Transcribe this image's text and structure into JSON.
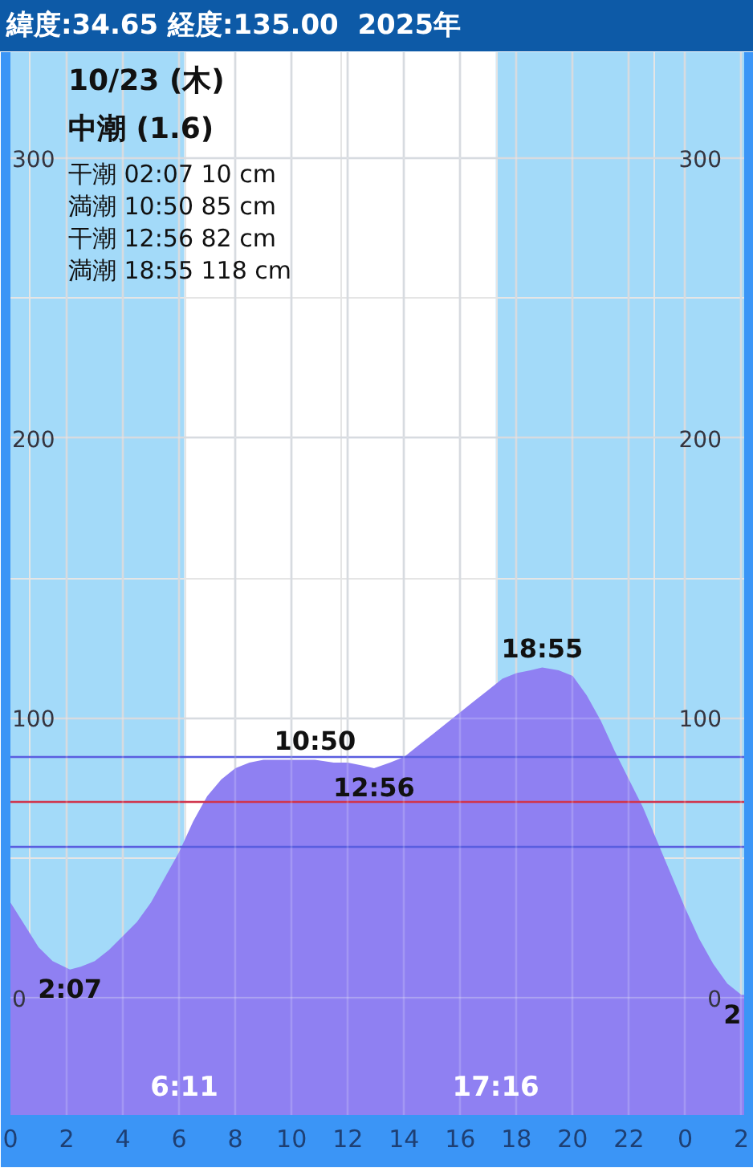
{
  "chart_data": {
    "type": "area",
    "title": "緯度:34.65 経度:135.00  2025年",
    "subtitle": "10/23 (木)",
    "x": [
      "2025-10-23T00:00",
      "2025-10-23T00:30",
      "2025-10-23T01:00",
      "2025-10-23T01:30",
      "2025-10-23T02:07",
      "2025-10-23T02:30",
      "2025-10-23T03:00",
      "2025-10-23T03:30",
      "2025-10-23T04:00",
      "2025-10-23T04:30",
      "2025-10-23T05:00",
      "2025-10-23T05:30",
      "2025-10-23T06:00",
      "2025-10-23T06:30",
      "2025-10-23T07:00",
      "2025-10-23T07:30",
      "2025-10-23T08:00",
      "2025-10-23T08:30",
      "2025-10-23T09:00",
      "2025-10-23T09:30",
      "2025-10-23T10:00",
      "2025-10-23T10:50",
      "2025-10-23T11:30",
      "2025-10-23T12:00",
      "2025-10-23T12:30",
      "2025-10-23T12:56",
      "2025-10-23T13:30",
      "2025-10-23T14:00",
      "2025-10-23T14:30",
      "2025-10-23T15:00",
      "2025-10-23T15:30",
      "2025-10-23T16:00",
      "2025-10-23T16:30",
      "2025-10-23T17:00",
      "2025-10-23T17:30",
      "2025-10-23T18:00",
      "2025-10-23T18:30",
      "2025-10-23T18:55",
      "2025-10-23T19:30",
      "2025-10-23T20:00",
      "2025-10-23T20:30",
      "2025-10-23T21:00",
      "2025-10-23T21:30",
      "2025-10-23T22:00",
      "2025-10-23T22:30",
      "2025-10-23T23:00",
      "2025-10-23T23:30",
      "2025-10-24T00:00",
      "2025-10-24T00:30",
      "2025-10-24T01:00",
      "2025-10-24T01:30",
      "2025-10-24T02:00",
      "2025-10-24T02:06"
    ],
    "series": [
      {
        "color": "#8f80f2",
        "values": [
          34,
          26,
          18,
          13,
          10,
          11,
          13,
          17,
          22,
          27,
          34,
          43,
          52,
          63,
          72,
          78,
          82,
          84,
          85,
          85,
          85,
          85,
          84,
          84,
          83,
          82,
          84,
          86,
          90,
          94,
          98,
          102,
          106,
          110,
          114,
          116,
          117,
          118,
          117,
          115,
          108,
          99,
          88,
          78,
          68,
          56,
          44,
          32,
          21,
          12,
          5,
          1,
          1
        ]
      }
    ],
    "xlim": [
      "2025-10-23T00:00",
      "2025-10-24T02:06"
    ],
    "xticks": [
      {
        "value": "2025-10-23T00:00",
        "label": "0"
      },
      {
        "value": "2025-10-23T02:00",
        "label": "2"
      },
      {
        "value": "2025-10-23T04:00",
        "label": "4"
      },
      {
        "value": "2025-10-23T06:00",
        "label": "6"
      },
      {
        "value": "2025-10-23T08:00",
        "label": "8"
      },
      {
        "value": "2025-10-23T10:00",
        "label": "10"
      },
      {
        "value": "2025-10-23T12:00",
        "label": "12"
      },
      {
        "value": "2025-10-23T14:00",
        "label": "14"
      },
      {
        "value": "2025-10-23T16:00",
        "label": "16"
      },
      {
        "value": "2025-10-23T18:00",
        "label": "18"
      },
      {
        "value": "2025-10-23T20:00",
        "label": "20"
      },
      {
        "value": "2025-10-23T22:00",
        "label": "22"
      },
      {
        "value": "2025-10-24T00:00",
        "label": "0"
      },
      {
        "value": "2025-10-24T02:00",
        "label": "2"
      }
    ],
    "ylim": [
      -42,
      338
    ],
    "yticks": [
      0,
      100,
      200,
      300
    ],
    "y2lim": [
      -42,
      338
    ],
    "y2ticks": [
      0,
      100,
      200,
      300
    ],
    "grid": true,
    "bands": [
      {
        "axis": "x",
        "from": "2025-10-23T06:11",
        "to": "2025-10-23T17:16",
        "color": "#ffffff"
      },
      {
        "axis": "y",
        "from": -42,
        "to": 0,
        "color": "#8f80f2"
      }
    ],
    "ref_lines": [
      {
        "axis": "y",
        "value": 86,
        "color": "#5a5ee0"
      },
      {
        "axis": "y",
        "value": 70,
        "color": "#d0344c"
      },
      {
        "axis": "y",
        "value": 54,
        "color": "#5a5ee0"
      }
    ],
    "annotations": [
      "中潮 (1.6)",
      "干潮 02:07  10 cm",
      "満潮 10:50  85 cm",
      "干潮 12:56  82 cm",
      "満潮 18:55 118 cm",
      {
        "text": "2:07",
        "x": "2025-10-23T02:07",
        "y": 10
      },
      {
        "text": "10:50",
        "x": "2025-10-23T10:50",
        "y": 85
      },
      {
        "text": "12:56",
        "x": "2025-10-23T12:56",
        "y": 82
      },
      {
        "text": "18:55",
        "x": "2025-10-23T18:55",
        "y": 118
      },
      {
        "text": "2",
        "x": "2025-10-24T02:00",
        "y": 1
      },
      {
        "text": "6:11",
        "x": "2025-10-23T06:11"
      },
      {
        "text": "17:16",
        "x": "2025-10-23T17:16"
      }
    ]
  }
}
